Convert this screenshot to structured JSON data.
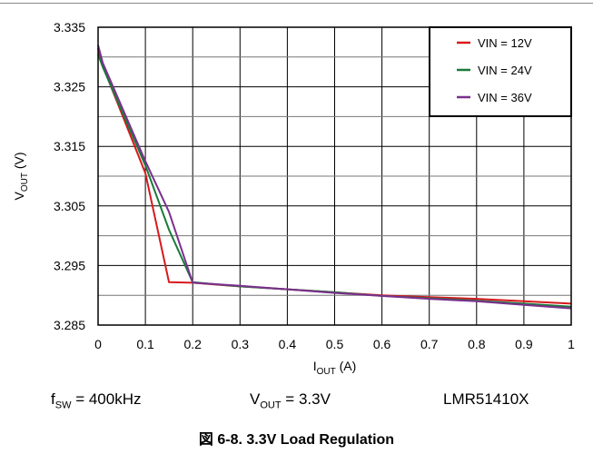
{
  "chart_data": {
    "type": "line",
    "title": "",
    "xlabel": {
      "main": "I",
      "sub": "OUT",
      "unit": " (A)"
    },
    "ylabel": {
      "main": "V",
      "sub": "OUT",
      "unit": " (V)"
    },
    "xlim": [
      0,
      1
    ],
    "ylim": [
      3.285,
      3.335
    ],
    "x_ticks": [
      "0",
      "0.1",
      "0.2",
      "0.3",
      "0.4",
      "0.5",
      "0.6",
      "0.7",
      "0.8",
      "0.9",
      "1"
    ],
    "y_ticks": [
      "3.285",
      "3.295",
      "3.305",
      "3.315",
      "3.325",
      "3.335"
    ],
    "grid": true,
    "legend_position": "top-right",
    "series": [
      {
        "name": "VIN = 12V",
        "color": "#d7191c",
        "points": [
          [
            0,
            3.3315
          ],
          [
            0.01,
            3.3285
          ],
          [
            0.1,
            3.3105
          ],
          [
            0.15,
            3.2922
          ],
          [
            0.2,
            3.2921
          ],
          [
            0.3,
            3.2915
          ],
          [
            0.4,
            3.291
          ],
          [
            0.5,
            3.2905
          ],
          [
            0.6,
            3.29
          ],
          [
            0.7,
            3.2897
          ],
          [
            0.8,
            3.2894
          ],
          [
            0.9,
            3.289
          ],
          [
            1.0,
            3.2886
          ]
        ]
      },
      {
        "name": "VIN = 24V",
        "color": "#1a7a3a",
        "points": [
          [
            0,
            3.3305
          ],
          [
            0.01,
            3.3283
          ],
          [
            0.1,
            3.3118
          ],
          [
            0.15,
            3.301
          ],
          [
            0.2,
            3.2922
          ],
          [
            0.3,
            3.2915
          ],
          [
            0.4,
            3.291
          ],
          [
            0.5,
            3.2905
          ],
          [
            0.6,
            3.2899
          ],
          [
            0.7,
            3.2895
          ],
          [
            0.8,
            3.2891
          ],
          [
            0.9,
            3.2886
          ],
          [
            1.0,
            3.2881
          ]
        ]
      },
      {
        "name": "VIN = 36V",
        "color": "#7b2f8e",
        "points": [
          [
            0,
            3.332
          ],
          [
            0.01,
            3.329
          ],
          [
            0.1,
            3.3125
          ],
          [
            0.15,
            3.304
          ],
          [
            0.2,
            3.2921
          ],
          [
            0.3,
            3.2916
          ],
          [
            0.4,
            3.291
          ],
          [
            0.5,
            3.2904
          ],
          [
            0.6,
            3.2899
          ],
          [
            0.7,
            3.2894
          ],
          [
            0.8,
            3.289
          ],
          [
            0.9,
            3.2884
          ],
          [
            1.0,
            3.2878
          ]
        ]
      }
    ]
  },
  "conditions": {
    "fsw": {
      "main": "f",
      "sub": "SW",
      "rest": " = 400kHz"
    },
    "vout": {
      "main": "V",
      "sub": "OUT",
      "rest": " = 3.3V"
    },
    "part": "LMR51410X"
  },
  "caption": "図 6-8. 3.3V Load Regulation"
}
